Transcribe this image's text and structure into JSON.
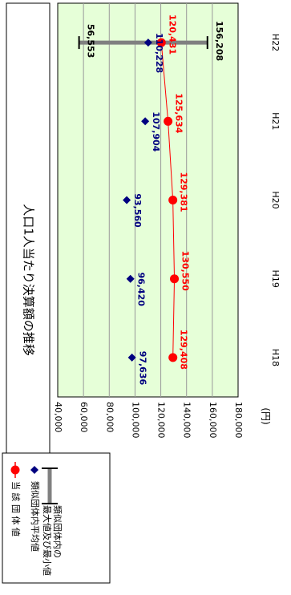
{
  "chart_data": {
    "type": "line",
    "orientation": "rotated-90-cw",
    "title": "人口1人当たり決算額の推移",
    "ylabel": "(円)",
    "categories": [
      "H18",
      "H19",
      "H20",
      "H21",
      "H22"
    ],
    "ylim": [
      40000,
      180000
    ],
    "ytick_step": 20000,
    "ytick_labels": [
      "180,000",
      "160,000",
      "140,000",
      "120,000",
      "100,000",
      "80,000",
      "60,000",
      "40,000"
    ],
    "grid": true,
    "series": [
      {
        "name": "当 該 団 体 値",
        "marker": "circle",
        "color": "#ff0000",
        "values": [
          129408,
          130550,
          129381,
          125634,
          120431
        ],
        "labels": [
          "129,408",
          "130,550",
          "129,381",
          "125,634",
          "120,431"
        ]
      },
      {
        "name": "類似団体内平均値",
        "marker": "diamond",
        "color": "#000080",
        "values": [
          97636,
          96420,
          93560,
          107904,
          110228
        ],
        "labels": [
          "97,636",
          "96,420",
          "93,560",
          "107,904",
          "110,228"
        ]
      }
    ],
    "range": {
      "name": "類似団体内の最大値及び最小値",
      "category": "H22",
      "max": 156208,
      "min": 56553,
      "max_label": "156,208",
      "min_label": "56,553",
      "color": "#808080"
    },
    "legend": {
      "position": "bottom-left",
      "items": [
        "当 該 団 体 値",
        "類似団体内平均値",
        "類似団体内の最大値及び最小値"
      ]
    },
    "colors": {
      "plot_bg": "#e6ffd8",
      "grid": "#999999",
      "value_series": "#ff0000",
      "avg_series": "#000080",
      "range": "#808080"
    }
  }
}
